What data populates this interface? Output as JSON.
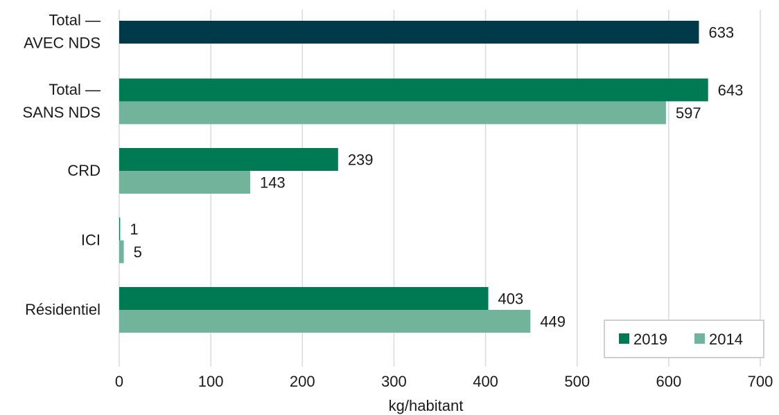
{
  "chart_data": {
    "type": "bar",
    "orientation": "horizontal",
    "categories": [
      "Total —\nAVEC NDS",
      "Total —\nSANS NDS",
      "CRD",
      "ICI",
      "Résidentiel"
    ],
    "series": [
      {
        "name": "2019",
        "color": "#007a53",
        "values": [
          null,
          643,
          239,
          1,
          403
        ],
        "labels": [
          "",
          "643",
          "239",
          "1",
          "403"
        ]
      },
      {
        "name": "2014",
        "color": "#72b39b",
        "values": [
          null,
          597,
          143,
          5,
          449
        ],
        "labels": [
          "",
          "597",
          "143",
          "5",
          "449"
        ]
      }
    ],
    "special_bars": [
      {
        "category_index": 0,
        "value": 633,
        "label": "633",
        "color": "#003a4a"
      }
    ],
    "xlabel": "kg/habitant",
    "xlim": [
      0,
      700
    ],
    "x_ticks": [
      "0",
      "100",
      "200",
      "300",
      "400",
      "500",
      "600",
      "700"
    ],
    "grid": "vertical",
    "legend_placement": "bottom-right"
  }
}
